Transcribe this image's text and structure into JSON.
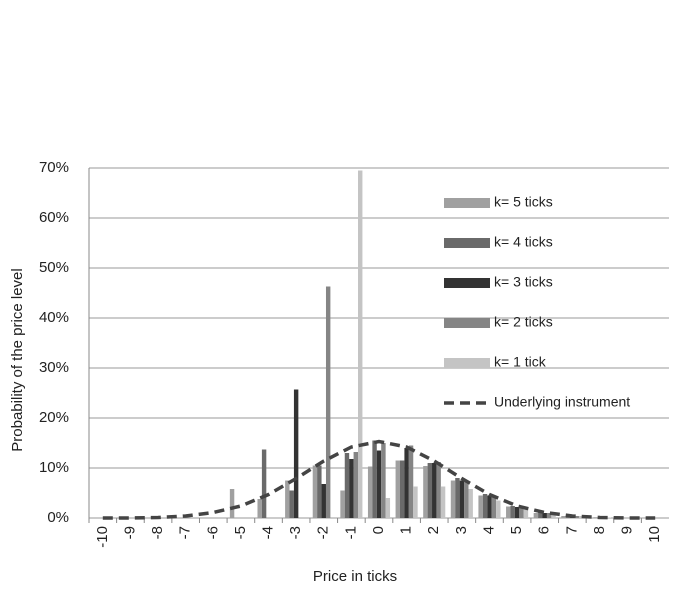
{
  "chart_data": {
    "type": "bar",
    "categories": [
      -10,
      -9,
      -8,
      -7,
      -6,
      -5,
      -4,
      -3,
      -2,
      -1,
      0,
      1,
      2,
      3,
      4,
      5,
      6,
      7,
      8,
      9,
      10
    ],
    "x_label": "Price in ticks",
    "y_label": "Probability of the price level",
    "ylim": [
      0,
      70
    ],
    "yticks": [
      {
        "value": 0,
        "label": "0%"
      },
      {
        "value": 10,
        "label": "10%"
      },
      {
        "value": 20,
        "label": "20%"
      },
      {
        "value": 30,
        "label": "30%"
      },
      {
        "value": 40,
        "label": "40%"
      },
      {
        "value": 50,
        "label": "50%"
      },
      {
        "value": 60,
        "label": "60%"
      },
      {
        "value": 70,
        "label": "70%"
      }
    ],
    "grid": true,
    "legend": "right",
    "series": [
      {
        "name": "k= 5 ticks",
        "color": "#a0a0a0",
        "values": [
          0,
          0,
          0,
          0,
          0,
          5.8,
          3.8,
          7.5,
          10.5,
          5.5,
          10.3,
          11.5,
          10.4,
          7.5,
          4.5,
          2.3,
          1,
          0.4,
          0.1,
          0,
          0
        ]
      },
      {
        "name": "k= 4 ticks",
        "color": "#6a6a6a",
        "values": [
          0,
          0,
          0,
          0,
          0,
          0,
          13.7,
          5.5,
          10.5,
          13,
          15.5,
          11.5,
          11,
          8,
          4.8,
          2.4,
          1.1,
          0.4,
          0.1,
          0,
          0
        ]
      },
      {
        "name": "k= 3 ticks",
        "color": "#333333",
        "values": [
          0,
          0,
          0,
          0,
          0,
          0,
          0,
          25.7,
          6.8,
          11.8,
          13.5,
          14,
          11,
          7.5,
          4.5,
          2.2,
          1,
          0.3,
          0.1,
          0,
          0
        ]
      },
      {
        "name": "k= 2 ticks",
        "color": "#858585",
        "values": [
          0,
          0,
          0,
          0,
          0,
          0,
          0,
          0,
          46.3,
          13.2,
          15,
          14.5,
          11.2,
          7.5,
          4.5,
          2.2,
          1,
          0.4,
          0.1,
          0,
          0
        ]
      },
      {
        "name": "k= 1 tick",
        "color": "#c4c4c4",
        "values": [
          0,
          0,
          0,
          0,
          0,
          0,
          0,
          0,
          0,
          69.5,
          4,
          6.3,
          6.3,
          5.8,
          3.5,
          2,
          1,
          0.4,
          0.1,
          0,
          0
        ]
      },
      {
        "name": "Underlying instrument",
        "color": "#444444",
        "type": "line",
        "dashed": true,
        "values": [
          0,
          0,
          0.1,
          0.4,
          1.1,
          2.4,
          4.7,
          7.9,
          11.4,
          14.2,
          15.3,
          14.2,
          11.4,
          7.9,
          4.7,
          2.4,
          1.1,
          0.4,
          0.1,
          0,
          0
        ]
      }
    ]
  }
}
